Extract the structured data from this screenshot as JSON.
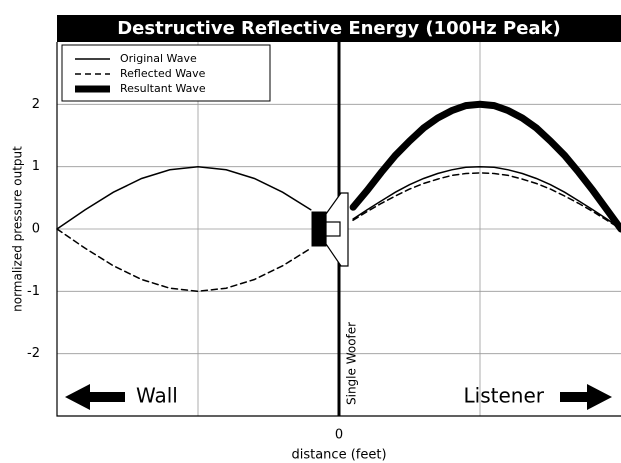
{
  "chart_data": {
    "type": "line",
    "title": "Destructive Reflective Energy (100Hz Peak)",
    "x_label": "distance (feet)",
    "y_label": "normalized pressure output",
    "xlim": [
      -2,
      2
    ],
    "xticks": [
      0
    ],
    "xgrid": [
      -1,
      1
    ],
    "ylim": [
      -3,
      3
    ],
    "yticks": [
      -2,
      -1,
      0,
      1,
      2
    ],
    "grid": true,
    "legend": "top-left",
    "annotations": {
      "left": "Wall",
      "right": "Listener",
      "woofer": "Single Woofer"
    },
    "series": [
      {
        "name": "Original Wave",
        "color": "#000000",
        "width": 1.5,
        "dashed": false,
        "x": [
          -2,
          -1.8,
          -1.6,
          -1.4,
          -1.2,
          -1,
          -0.8,
          -0.6,
          -0.4,
          -0.2,
          null,
          0.1,
          0.2,
          0.3,
          0.4,
          0.5,
          0.6,
          0.7,
          0.8,
          0.9,
          1,
          1.1,
          1.2,
          1.3,
          1.4,
          1.5,
          1.6,
          1.7,
          1.8,
          1.9,
          2
        ],
        "values": [
          0,
          0.31,
          0.59,
          0.81,
          0.95,
          1,
          0.95,
          0.81,
          0.59,
          0.31,
          null,
          0.16,
          0.31,
          0.45,
          0.59,
          0.71,
          0.81,
          0.89,
          0.95,
          0.99,
          1,
          0.99,
          0.95,
          0.89,
          0.81,
          0.71,
          0.59,
          0.45,
          0.31,
          0.16,
          0
        ]
      },
      {
        "name": "Reflected Wave",
        "color": "#000000",
        "width": 1.5,
        "dashed": true,
        "x": [
          -2,
          -1.8,
          -1.6,
          -1.4,
          -1.2,
          -1,
          -0.8,
          -0.6,
          -0.4,
          -0.2,
          null,
          0.1,
          0.2,
          0.3,
          0.4,
          0.5,
          0.6,
          0.7,
          0.8,
          0.9,
          1,
          1.1,
          1.2,
          1.3,
          1.4,
          1.5,
          1.6,
          1.7,
          1.8,
          1.9,
          2
        ],
        "values": [
          0,
          -0.31,
          -0.59,
          -0.81,
          -0.95,
          -1,
          -0.95,
          -0.81,
          -0.59,
          -0.31,
          null,
          0.14,
          0.28,
          0.41,
          0.53,
          0.64,
          0.73,
          0.8,
          0.86,
          0.89,
          0.9,
          0.89,
          0.86,
          0.8,
          0.73,
          0.64,
          0.53,
          0.41,
          0.28,
          0.14,
          0
        ]
      },
      {
        "name": "Resultant Wave",
        "color": "#000000",
        "width": 7,
        "dashed": false,
        "x": [
          0.1,
          0.2,
          0.3,
          0.4,
          0.5,
          0.6,
          0.7,
          0.8,
          0.9,
          1,
          1.1,
          1.2,
          1.3,
          1.4,
          1.5,
          1.6,
          1.7,
          1.8,
          1.9,
          2
        ],
        "values": [
          0.35,
          0.62,
          0.91,
          1.18,
          1.41,
          1.62,
          1.78,
          1.9,
          1.98,
          2,
          1.98,
          1.9,
          1.78,
          1.62,
          1.41,
          1.18,
          0.91,
          0.62,
          0.31,
          0
        ]
      }
    ]
  }
}
